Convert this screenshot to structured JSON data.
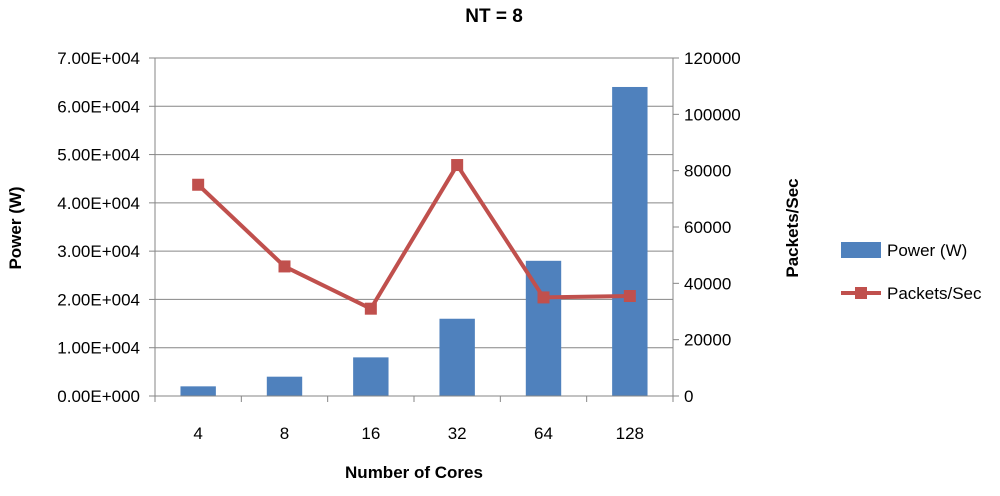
{
  "chart_data": {
    "type": "bar+line",
    "title": "NT = 8",
    "xlabel": "Number of Cores",
    "ylabel": "Power (W)",
    "y2label": "Packets/Sec",
    "categories": [
      "4",
      "8",
      "16",
      "32",
      "64",
      "128"
    ],
    "ylim": [
      0,
      70000
    ],
    "y_ticks": [
      0,
      10000,
      20000,
      30000,
      40000,
      50000,
      60000,
      70000
    ],
    "y_tick_labels": [
      "0.00E+000",
      "1.00E+004",
      "2.00E+004",
      "3.00E+004",
      "4.00E+004",
      "5.00E+004",
      "6.00E+004",
      "7.00E+004"
    ],
    "y2lim": [
      0,
      120000
    ],
    "y2_ticks": [
      0,
      20000,
      40000,
      60000,
      80000,
      100000,
      120000
    ],
    "y2_tick_labels": [
      "0",
      "20000",
      "40000",
      "60000",
      "80000",
      "100000",
      "120000"
    ],
    "grid": true,
    "legend_position": "right",
    "series": [
      {
        "name": "Power (W)",
        "type": "bar",
        "axis": "left",
        "color": "#4F81BD",
        "values": [
          2000,
          4000,
          8000,
          16000,
          28000,
          64000
        ]
      },
      {
        "name": "Packets/Sec",
        "type": "line",
        "axis": "right",
        "color": "#C0504D",
        "values": [
          75000,
          46000,
          31000,
          82000,
          35000,
          35500
        ]
      }
    ]
  }
}
